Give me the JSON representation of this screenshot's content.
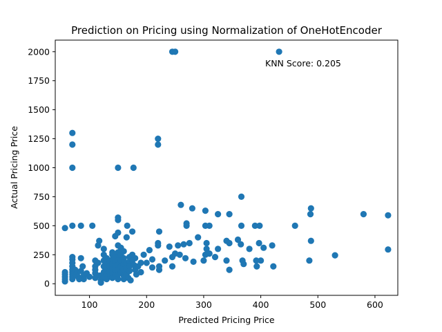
{
  "chart_data": {
    "type": "scatter",
    "title": "Prediction on Pricing using Normalization of OneHotEncoder",
    "xlabel": "Predicted Pricing Price",
    "ylabel": "Actual Pricing Price",
    "xlim": [
      40,
      640
    ],
    "ylim": [
      -100,
      2100
    ],
    "xticks": [
      100,
      200,
      300,
      400,
      500,
      600
    ],
    "yticks": [
      0,
      250,
      500,
      750,
      1000,
      1250,
      1500,
      1750,
      2000
    ],
    "xtick_labels": [
      "100",
      "200",
      "300",
      "400",
      "500",
      "600"
    ],
    "ytick_labels": [
      "0",
      "250",
      "500",
      "750",
      "1000",
      "1250",
      "1500",
      "1750",
      "2000"
    ],
    "grid": false,
    "legend": "none",
    "marker_color": "#1f77b4",
    "annotation": "KNN Score: 0.205",
    "series": [
      {
        "points": [
          [
            245,
            2000
          ],
          [
            250,
            2000
          ],
          [
            432,
            2000
          ],
          [
            70,
            1300
          ],
          [
            70,
            1200
          ],
          [
            70,
            1000
          ],
          [
            220,
            1250
          ],
          [
            220,
            1200
          ],
          [
            150,
            1000
          ],
          [
            177,
            1000
          ],
          [
            366,
            750
          ],
          [
            260,
            680
          ],
          [
            280,
            650
          ],
          [
            303,
            630
          ],
          [
            325,
            600
          ],
          [
            345,
            600
          ],
          [
            580,
            600
          ],
          [
            623,
            590
          ],
          [
            488,
            650
          ],
          [
            487,
            600
          ],
          [
            460,
            500
          ],
          [
            150,
            570
          ],
          [
            150,
            550
          ],
          [
            105,
            500
          ],
          [
            85,
            500
          ],
          [
            70,
            500
          ],
          [
            57,
            480
          ],
          [
            166,
            500
          ],
          [
            175,
            450
          ],
          [
            222,
            450
          ],
          [
            270,
            520
          ],
          [
            270,
            500
          ],
          [
            303,
            500
          ],
          [
            310,
            500
          ],
          [
            366,
            500
          ],
          [
            390,
            500
          ],
          [
            398,
            500
          ],
          [
            150,
            440
          ],
          [
            145,
            410
          ],
          [
            165,
            400
          ],
          [
            117,
            370
          ],
          [
            115,
            330
          ],
          [
            150,
            330
          ],
          [
            155,
            310
          ],
          [
            125,
            300
          ],
          [
            160,
            280
          ],
          [
            140,
            270
          ],
          [
            220,
            350
          ],
          [
            220,
            330
          ],
          [
            205,
            290
          ],
          [
            195,
            250
          ],
          [
            175,
            250
          ],
          [
            180,
            220
          ],
          [
            190,
            180
          ],
          [
            265,
            340
          ],
          [
            275,
            350
          ],
          [
            290,
            400
          ],
          [
            305,
            350
          ],
          [
            305,
            300
          ],
          [
            325,
            300
          ],
          [
            340,
            370
          ],
          [
            345,
            350
          ],
          [
            360,
            380
          ],
          [
            365,
            340
          ],
          [
            380,
            300
          ],
          [
            397,
            350
          ],
          [
            405,
            310
          ],
          [
            420,
            330
          ],
          [
            488,
            370
          ],
          [
            623,
            295
          ],
          [
            530,
            245
          ],
          [
            485,
            200
          ],
          [
            422,
            150
          ],
          [
            240,
            320
          ],
          [
            255,
            330
          ],
          [
            250,
            260
          ],
          [
            245,
            230
          ],
          [
            232,
            200
          ],
          [
            222,
            150
          ],
          [
            222,
            120
          ],
          [
            245,
            150
          ],
          [
            258,
            250
          ],
          [
            268,
            220
          ],
          [
            282,
            190
          ],
          [
            300,
            200
          ],
          [
            303,
            250
          ],
          [
            310,
            260
          ],
          [
            320,
            230
          ],
          [
            340,
            200
          ],
          [
            345,
            120
          ],
          [
            368,
            200
          ],
          [
            370,
            170
          ],
          [
            392,
            200
          ],
          [
            400,
            200
          ],
          [
            393,
            150
          ],
          [
            57,
            100
          ],
          [
            57,
            80
          ],
          [
            57,
            60
          ],
          [
            57,
            40
          ],
          [
            57,
            20
          ],
          [
            70,
            230
          ],
          [
            70,
            210
          ],
          [
            70,
            180
          ],
          [
            70,
            150
          ],
          [
            70,
            120
          ],
          [
            70,
            100
          ],
          [
            70,
            80
          ],
          [
            70,
            60
          ],
          [
            70,
            40
          ],
          [
            75,
            120
          ],
          [
            78,
            90
          ],
          [
            80,
            60
          ],
          [
            82,
            40
          ],
          [
            85,
            110
          ],
          [
            85,
            220
          ],
          [
            88,
            150
          ],
          [
            90,
            70
          ],
          [
            90,
            40
          ],
          [
            95,
            90
          ],
          [
            100,
            60
          ],
          [
            110,
            200
          ],
          [
            110,
            150
          ],
          [
            110,
            120
          ],
          [
            110,
            90
          ],
          [
            110,
            50
          ],
          [
            115,
            180
          ],
          [
            118,
            70
          ],
          [
            120,
            30
          ],
          [
            120,
            10
          ],
          [
            125,
            250
          ],
          [
            125,
            200
          ],
          [
            125,
            150
          ],
          [
            125,
            100
          ],
          [
            125,
            60
          ],
          [
            130,
            220
          ],
          [
            130,
            180
          ],
          [
            130,
            130
          ],
          [
            130,
            80
          ],
          [
            130,
            40
          ],
          [
            135,
            200
          ],
          [
            135,
            150
          ],
          [
            135,
            100
          ],
          [
            138,
            60
          ],
          [
            140,
            250
          ],
          [
            140,
            210
          ],
          [
            140,
            170
          ],
          [
            140,
            130
          ],
          [
            140,
            90
          ],
          [
            140,
            50
          ],
          [
            145,
            240
          ],
          [
            145,
            190
          ],
          [
            145,
            150
          ],
          [
            145,
            110
          ],
          [
            145,
            70
          ],
          [
            150,
            270
          ],
          [
            150,
            230
          ],
          [
            150,
            200
          ],
          [
            150,
            160
          ],
          [
            150,
            120
          ],
          [
            150,
            80
          ],
          [
            150,
            40
          ],
          [
            155,
            250
          ],
          [
            155,
            200
          ],
          [
            155,
            150
          ],
          [
            155,
            100
          ],
          [
            160,
            220
          ],
          [
            160,
            170
          ],
          [
            160,
            120
          ],
          [
            160,
            70
          ],
          [
            160,
            40
          ],
          [
            165,
            180
          ],
          [
            165,
            130
          ],
          [
            165,
            80
          ],
          [
            168,
            50
          ],
          [
            170,
            230
          ],
          [
            170,
            190
          ],
          [
            170,
            150
          ],
          [
            170,
            110
          ],
          [
            172,
            30
          ],
          [
            175,
            200
          ],
          [
            178,
            160
          ],
          [
            180,
            120
          ],
          [
            182,
            80
          ],
          [
            185,
            150
          ],
          [
            190,
            100
          ],
          [
            200,
            180
          ],
          [
            210,
            210
          ],
          [
            210,
            140
          ]
        ]
      }
    ]
  }
}
